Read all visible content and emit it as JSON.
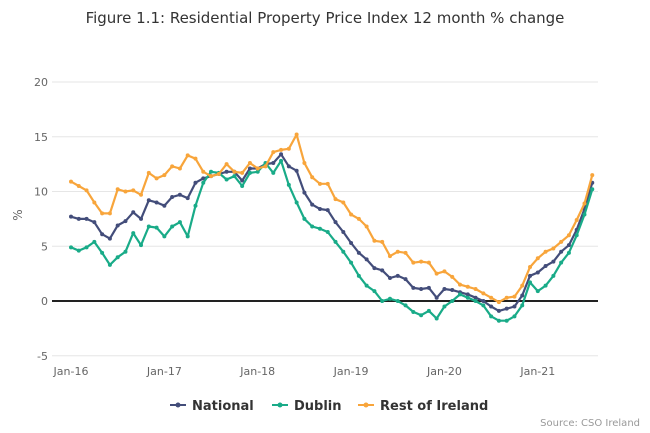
{
  "chart_data": {
    "type": "line",
    "title": "Figure 1.1: Residential Property Price Index 12 month % change",
    "xlabel": "",
    "ylabel": "%",
    "ylim": [
      -5,
      20
    ],
    "yticks": [
      "-5",
      "0",
      "5",
      "10",
      "15",
      "20"
    ],
    "ytick_values": [
      -5,
      0,
      5,
      10,
      15,
      20
    ],
    "x_start": "Jan-16",
    "x_end": "Aug-21",
    "x_frequency": "monthly",
    "xticks": [
      "Jan-16",
      "Jan-17",
      "Jan-18",
      "Jan-19",
      "Jan-20",
      "Jan-21"
    ],
    "grid": true,
    "zero_line": true,
    "legend_position": "bottom",
    "series": [
      {
        "name": "National",
        "color": "#434d7a",
        "values": [
          7.7,
          7.5,
          7.5,
          7.2,
          6.1,
          5.7,
          6.9,
          7.3,
          8.1,
          7.5,
          9.2,
          9.0,
          8.7,
          9.5,
          9.7,
          9.4,
          10.8,
          11.2,
          11.4,
          11.6,
          11.8,
          11.8,
          11.0,
          12.1,
          12.1,
          12.5,
          12.6,
          13.4,
          12.3,
          11.9,
          9.9,
          8.8,
          8.4,
          8.3,
          7.2,
          6.3,
          5.3,
          4.4,
          3.8,
          3.0,
          2.8,
          2.1,
          2.3,
          2.0,
          1.2,
          1.1,
          1.2,
          0.3,
          1.1,
          1.0,
          0.8,
          0.6,
          0.3,
          0.0,
          -0.5,
          -0.9,
          -0.7,
          -0.5,
          0.5,
          2.3,
          2.6,
          3.2,
          3.6,
          4.5,
          5.1,
          6.5,
          8.4,
          10.8
        ]
      },
      {
        "name": "Dublin",
        "color": "#19ab88",
        "values": [
          4.9,
          4.6,
          4.9,
          5.4,
          4.4,
          3.3,
          4.0,
          4.5,
          6.2,
          5.1,
          6.8,
          6.7,
          5.9,
          6.8,
          7.2,
          5.9,
          8.7,
          10.8,
          11.8,
          11.7,
          11.1,
          11.4,
          10.5,
          11.7,
          11.8,
          12.6,
          11.7,
          12.8,
          10.6,
          9.0,
          7.5,
          6.8,
          6.6,
          6.3,
          5.4,
          4.5,
          3.5,
          2.3,
          1.4,
          0.9,
          0.0,
          0.2,
          0.0,
          -0.4,
          -1.0,
          -1.3,
          -0.9,
          -1.6,
          -0.5,
          0.0,
          0.6,
          0.3,
          0.0,
          -0.4,
          -1.4,
          -1.8,
          -1.8,
          -1.4,
          -0.4,
          1.7,
          0.9,
          1.4,
          2.3,
          3.5,
          4.4,
          6.0,
          7.9,
          10.2
        ]
      },
      {
        "name": "Rest of Ireland",
        "color": "#f8a53b",
        "values": [
          10.9,
          10.5,
          10.1,
          9.0,
          8.0,
          8.0,
          10.2,
          10.0,
          10.1,
          9.7,
          11.7,
          11.2,
          11.5,
          12.3,
          12.1,
          13.3,
          13.0,
          11.8,
          11.4,
          11.6,
          12.5,
          11.8,
          11.7,
          12.6,
          12.1,
          12.3,
          13.6,
          13.8,
          13.9,
          15.2,
          12.6,
          11.3,
          10.7,
          10.7,
          9.3,
          9.0,
          7.9,
          7.5,
          6.8,
          5.5,
          5.4,
          4.1,
          4.5,
          4.4,
          3.5,
          3.6,
          3.5,
          2.5,
          2.7,
          2.2,
          1.5,
          1.3,
          1.1,
          0.7,
          0.3,
          -0.1,
          0.3,
          0.4,
          1.4,
          3.1,
          3.9,
          4.5,
          4.8,
          5.4,
          6.0,
          7.4,
          8.9,
          11.5
        ]
      }
    ],
    "source": "Source: CSO Ireland"
  }
}
